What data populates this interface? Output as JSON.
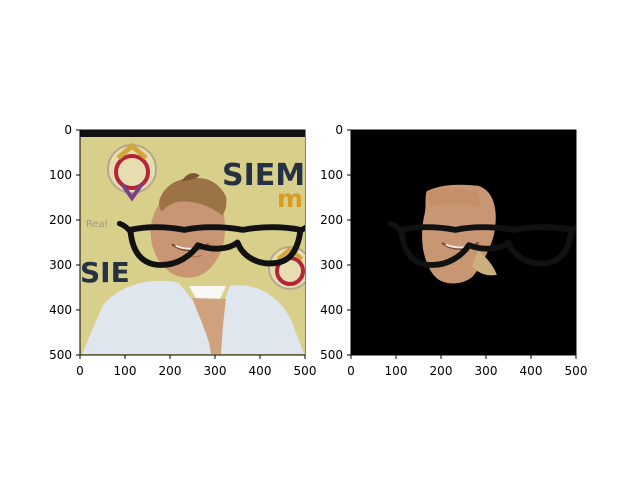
{
  "figure": {
    "panels": [
      {
        "name": "left",
        "content": "photo-with-glasses-overlay",
        "x_ticks": [
          "0",
          "100",
          "200",
          "300",
          "400",
          "500"
        ],
        "y_ticks": [
          "0",
          "100",
          "200",
          "300",
          "400",
          "500"
        ],
        "overlay_text": [
          "SIEM",
          "m",
          "SIE",
          "Real"
        ]
      },
      {
        "name": "right",
        "content": "masked-face-with-glasses-overlay",
        "x_ticks": [
          "0",
          "100",
          "200",
          "300",
          "400",
          "500"
        ],
        "y_ticks": [
          "0",
          "100",
          "200",
          "300",
          "400",
          "500"
        ]
      }
    ],
    "colors": {
      "background": "#ffffff",
      "mask_background": "#000000",
      "poster_yellow": "#d8cf8a",
      "poster_red": "#b4253a",
      "jacket": "#dfe6ee",
      "skin": "#c99674",
      "hair": "#9c7346",
      "glasses": "#111111"
    }
  }
}
